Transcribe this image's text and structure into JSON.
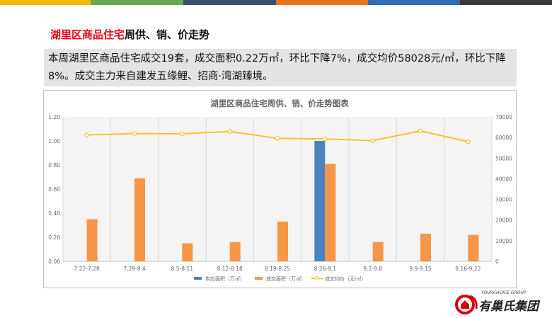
{
  "header": {
    "title_highlight": "湖里区商品住宅",
    "title_rest": "周供、销、价走势",
    "summary": "本周湖里区商品住宅成交19套，成交面积0.22万㎡，环比下降7%，成交均价58028元/㎡，环比下降8%。成交主力来自建发五缘鲤、招商·湾湖臻境。"
  },
  "brand": {
    "name_en": "YOURCHOICE GROUP",
    "name_cn": "有巢氏集团"
  },
  "colors": {
    "topbar": [
      "#f5b800",
      "#6aa84f",
      "#3a4f6a",
      "#e8731f",
      "#2e6db4",
      "#3a3a3a"
    ],
    "supply": "#4f81bd",
    "deal_area": "#f79646",
    "avg_price": "#f2c21b",
    "title_red": "#e60012"
  },
  "chart_data": {
    "type": "bar",
    "title": "湖里区商品住宅周供、销、价走势图表",
    "categories": [
      "7.22-7.28",
      "7.29-8.4",
      "8.5-8.11",
      "8.12-8.18",
      "8.19-8.25",
      "8.26-9.1",
      "9.2-9.8",
      "9.9-9.15",
      "9.16-9.22"
    ],
    "series": [
      {
        "name": "供应面积（万㎡）",
        "type": "bar",
        "axis": "left",
        "values": [
          0,
          0,
          0,
          0,
          0,
          1.0,
          0,
          0,
          0
        ]
      },
      {
        "name": "成交面积（万㎡）",
        "type": "bar",
        "axis": "left",
        "values": [
          0.35,
          0.69,
          0.15,
          0.16,
          0.33,
          0.81,
          0.16,
          0.23,
          0.22
        ]
      },
      {
        "name": "成交均价（元/㎡）",
        "type": "line",
        "axis": "right",
        "values": [
          61200,
          61900,
          61800,
          62900,
          59600,
          59300,
          58500,
          63200,
          58000
        ]
      }
    ],
    "y_left": {
      "min": 0,
      "max": 1.2,
      "ticks": [
        "0.00",
        "0.20",
        "0.40",
        "0.60",
        "0.80",
        "1.00",
        "1.20"
      ]
    },
    "y_right": {
      "min": 0,
      "max": 70000,
      "ticks": [
        "0",
        "10000",
        "20000",
        "30000",
        "40000",
        "50000",
        "60000",
        "70000"
      ]
    },
    "grid": "vertical",
    "legend": "bottom"
  }
}
